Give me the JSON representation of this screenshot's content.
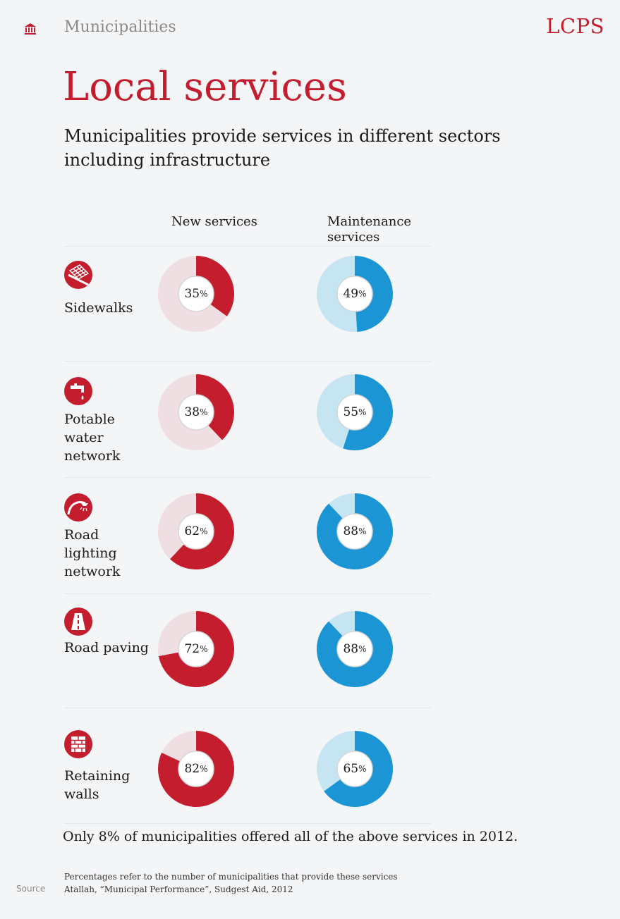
{
  "header": {
    "section": "Municipalities",
    "brand": "LCPS",
    "section_icon": "building-icon"
  },
  "title": "Local services",
  "subtitle": "Municipalities provide services in different sectors including infrastructure",
  "columns": {
    "new": "New services",
    "maintenance": "Maintenance services"
  },
  "chart_data": {
    "type": "pie",
    "title": "Local services",
    "subtitle": "Municipalities provide services in different sectors including infrastructure",
    "categories": [
      "Sidewalks",
      "Potable water network",
      "Road lighting network",
      "Road paving",
      "Retaining walls"
    ],
    "series": [
      {
        "name": "New services",
        "values": [
          35,
          38,
          62,
          72,
          82
        ],
        "color": "#c41e2e",
        "track": "#f0dfe2"
      },
      {
        "name": "Maintenance services",
        "values": [
          49,
          55,
          88,
          88,
          65
        ],
        "color": "#1b95d3",
        "track": "#c6e5f2"
      }
    ],
    "unit": "%"
  },
  "rows": [
    {
      "label": "Sidewalks",
      "icon": "sidewalk-icon"
    },
    {
      "label": "Potable water network",
      "icon": "water-tap-icon"
    },
    {
      "label": "Road lighting network",
      "icon": "street-lamp-icon"
    },
    {
      "label": "Road paving",
      "icon": "road-icon"
    },
    {
      "label": "Retaining walls",
      "icon": "brick-wall-icon"
    }
  ],
  "note": "Only 8% of municipalities offered all of the above services in 2012.",
  "footer": {
    "source_label": "Source",
    "line1": "Percentages refer to the number of municipalities that provide these services",
    "line2": "Atallah, “Municipal Performance”, Sudgest Aid, 2012"
  }
}
